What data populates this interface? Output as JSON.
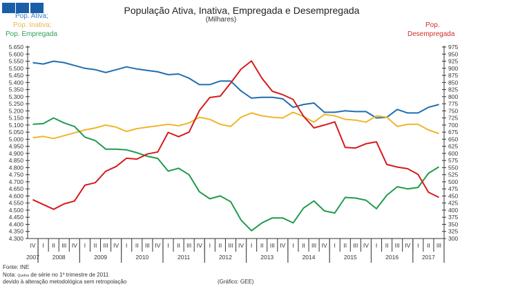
{
  "legend_left": {
    "ativa": "Pop. Ativa;",
    "inativa": "Pop. Inativa;",
    "empregada": "Pop. Empregada"
  },
  "legend_right": {
    "line1": "Pop.",
    "line2": "Desempregada"
  },
  "footer": {
    "source": "Fonte: INE",
    "note_prefix": "Nota:",
    "note_small": "Quebra",
    "note_rest": "de série no 1º trimestre de 2011",
    "note_line2": "devido à alteração metodológica sem retropolação",
    "credit": "(Gráfico:  GEE)"
  },
  "colors": {
    "ativa": "#1f6db1",
    "inativa": "#f0b52a",
    "empregada": "#1f9b4c",
    "desempregada": "#d7191c",
    "squares": "#1b5ea8"
  },
  "chart_data": {
    "type": "line",
    "title": "População Ativa, Inativa, Empregada e Desempregada",
    "subtitle": "(Milhares)",
    "quarters": [
      "IV",
      "I",
      "II",
      "III",
      "IV",
      "I",
      "II",
      "III",
      "IV",
      "I",
      "II",
      "III",
      "IV",
      "I",
      "II",
      "III",
      "IV",
      "I",
      "II",
      "III",
      "IV",
      "I",
      "II",
      "III",
      "IV",
      "I",
      "II",
      "III",
      "IV",
      "I",
      "II",
      "III",
      "IV",
      "I",
      "II",
      "III",
      "IV",
      "I",
      "II",
      "III"
    ],
    "years": [
      {
        "label": "2007",
        "start": 0,
        "count": 1
      },
      {
        "label": "2008",
        "start": 1,
        "count": 4
      },
      {
        "label": "2009",
        "start": 5,
        "count": 4
      },
      {
        "label": "2010",
        "start": 9,
        "count": 4
      },
      {
        "label": "2011",
        "start": 13,
        "count": 4
      },
      {
        "label": "2012",
        "start": 17,
        "count": 4
      },
      {
        "label": "2013",
        "start": 21,
        "count": 4
      },
      {
        "label": "2014",
        "start": 25,
        "count": 4
      },
      {
        "label": "2015",
        "start": 29,
        "count": 4
      },
      {
        "label": "2016",
        "start": 33,
        "count": 4
      },
      {
        "label": "2017",
        "start": 37,
        "count": 3
      }
    ],
    "y_left": {
      "min": 4300,
      "max": 5650,
      "step": 50,
      "tick_labels": [
        "5.650",
        "5.600",
        "5.550",
        "5.500",
        "5.450",
        "5.400",
        "5.350",
        "5.300",
        "5.250",
        "5.200",
        "5.150",
        "5.100",
        "5.050",
        "5.000",
        "4.950",
        "4.900",
        "4.850",
        "4.800",
        "4.750",
        "4.700",
        "4.650",
        "4.600",
        "4.550",
        "4.500",
        "4.450",
        "4.400",
        "4.350",
        "4.300"
      ]
    },
    "y_right": {
      "min": 300,
      "max": 975,
      "step": 25,
      "tick_labels": [
        "975",
        "950",
        "925",
        "900",
        "875",
        "850",
        "825",
        "800",
        "775",
        "750",
        "725",
        "700",
        "675",
        "650",
        "625",
        "600",
        "575",
        "550",
        "525",
        "500",
        "475",
        "450",
        "425",
        "400",
        "375",
        "350",
        "325",
        "300"
      ]
    },
    "series": [
      {
        "name": "Pop. Ativa",
        "key": "ativa",
        "axis": "left",
        "values": [
          5540,
          5530,
          5550,
          5540,
          5520,
          5500,
          5490,
          5470,
          5490,
          5510,
          5495,
          5485,
          5475,
          5455,
          5460,
          5430,
          5385,
          5385,
          5410,
          5410,
          5340,
          5290,
          5295,
          5295,
          5285,
          5225,
          5245,
          5255,
          5190,
          5190,
          5200,
          5195,
          5195,
          5150,
          5155,
          5210,
          5185,
          5185,
          5225,
          5245
        ]
      },
      {
        "name": "Pop. Inativa",
        "key": "inativa",
        "axis": "left",
        "values": [
          5010,
          5020,
          5005,
          5025,
          5045,
          5065,
          5080,
          5100,
          5085,
          5055,
          5075,
          5085,
          5095,
          5105,
          5095,
          5115,
          5155,
          5140,
          5105,
          5090,
          5155,
          5185,
          5165,
          5155,
          5150,
          5190,
          5160,
          5120,
          5175,
          5165,
          5140,
          5135,
          5120,
          5165,
          5155,
          5090,
          5105,
          5105,
          5065,
          5040
        ]
      },
      {
        "name": "Pop. Empregada",
        "key": "empregada",
        "axis": "left",
        "values": [
          5105,
          5110,
          5150,
          5115,
          5090,
          5015,
          4990,
          4930,
          4930,
          4925,
          4905,
          4880,
          4865,
          4775,
          4795,
          4750,
          4630,
          4580,
          4600,
          4560,
          4430,
          4355,
          4410,
          4445,
          4445,
          4410,
          4515,
          4565,
          4495,
          4480,
          4590,
          4585,
          4570,
          4510,
          4605,
          4665,
          4650,
          4660,
          4760,
          4805
        ]
      },
      {
        "name": "Pop. Desempregada",
        "key": "desempregada",
        "axis": "right",
        "values": [
          437,
          420,
          403,
          422,
          432,
          488,
          497,
          537,
          554,
          583,
          580,
          598,
          605,
          674,
          659,
          675,
          751,
          797,
          802,
          848,
          897,
          926,
          865,
          819,
          807,
          790,
          731,
          690,
          700,
          711,
          621,
          619,
          634,
          641,
          561,
          552,
          546,
          526,
          463,
          445
        ]
      }
    ],
    "grid": false
  }
}
